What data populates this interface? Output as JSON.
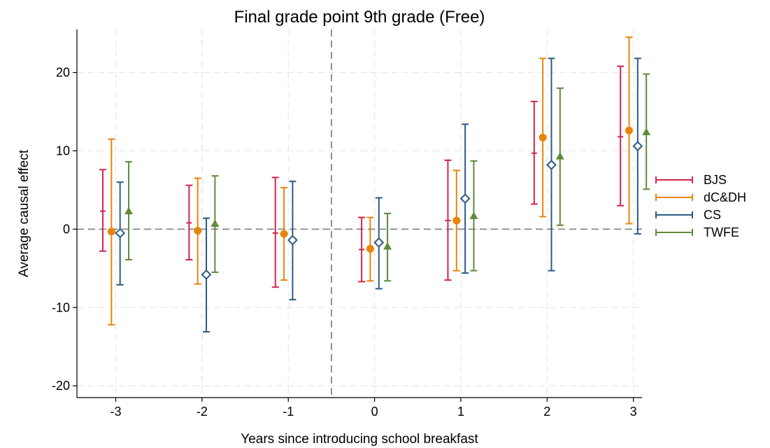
{
  "chart_data": {
    "type": "scatter",
    "title": "Final grade point 9th grade (Free)",
    "xlabel": "Years since introducing school breakfast",
    "ylabel": "Average causal effect",
    "xlim": [
      -3.45,
      3.1
    ],
    "ylim": [
      -21.5,
      25.5
    ],
    "x_ticks": [
      -3,
      -2,
      -1,
      0,
      1,
      2,
      3
    ],
    "x_tick_labels": [
      "-3",
      "-2",
      "-1",
      "0",
      "1",
      "2",
      "3"
    ],
    "y_ticks": [
      -20,
      -10,
      0,
      10,
      20
    ],
    "y_tick_labels": [
      "-20",
      "-10",
      "0",
      "10",
      "20"
    ],
    "grid": true,
    "reference_lines": {
      "y": 0,
      "x": -0.5
    },
    "legend_position": "right",
    "series": [
      {
        "name": "BJS",
        "color": "#d6234f",
        "marker": "tick",
        "points": [
          {
            "x": -3.15,
            "y": 2.3,
            "lo": -2.8,
            "hi": 7.6
          },
          {
            "x": -2.15,
            "y": 0.8,
            "lo": -3.9,
            "hi": 5.6
          },
          {
            "x": -1.15,
            "y": -0.5,
            "lo": -7.4,
            "hi": 6.6
          },
          {
            "x": -0.15,
            "y": -2.6,
            "lo": -6.7,
            "hi": 1.5
          },
          {
            "x": 0.85,
            "y": 1.1,
            "lo": -6.5,
            "hi": 8.8
          },
          {
            "x": 1.85,
            "y": 9.7,
            "lo": 3.2,
            "hi": 16.3
          },
          {
            "x": 2.85,
            "y": 11.8,
            "lo": 3.0,
            "hi": 20.8
          }
        ]
      },
      {
        "name": "dC&DH",
        "color": "#e8850c",
        "marker": "circle",
        "points": [
          {
            "x": -3.05,
            "y": -0.3,
            "lo": -12.2,
            "hi": 11.5
          },
          {
            "x": -2.05,
            "y": -0.2,
            "lo": -7.0,
            "hi": 6.5
          },
          {
            "x": -1.05,
            "y": -0.6,
            "lo": -6.5,
            "hi": 5.3
          },
          {
            "x": -0.05,
            "y": -2.5,
            "lo": -6.6,
            "hi": 1.5
          },
          {
            "x": 0.95,
            "y": 1.1,
            "lo": -5.3,
            "hi": 7.5
          },
          {
            "x": 1.95,
            "y": 11.7,
            "lo": 1.6,
            "hi": 21.8
          },
          {
            "x": 2.95,
            "y": 12.6,
            "lo": 0.7,
            "hi": 24.5
          }
        ]
      },
      {
        "name": "CS",
        "color": "#2b5b84",
        "marker": "diamond",
        "points": [
          {
            "x": -2.95,
            "y": -0.5,
            "lo": -7.1,
            "hi": 6.0
          },
          {
            "x": -1.95,
            "y": -5.8,
            "lo": -13.1,
            "hi": 1.4
          },
          {
            "x": -0.95,
            "y": -1.4,
            "lo": -9.0,
            "hi": 6.1
          },
          {
            "x": 0.05,
            "y": -1.7,
            "lo": -7.6,
            "hi": 4.0
          },
          {
            "x": 1.05,
            "y": 3.9,
            "lo": -5.6,
            "hi": 13.4
          },
          {
            "x": 2.05,
            "y": 8.2,
            "lo": -5.3,
            "hi": 21.8
          },
          {
            "x": 3.05,
            "y": 10.6,
            "lo": -0.6,
            "hi": 21.8
          }
        ]
      },
      {
        "name": "TWFE",
        "color": "#5f8a3a",
        "marker": "triangle",
        "points": [
          {
            "x": -2.85,
            "y": 2.3,
            "lo": -3.9,
            "hi": 8.6
          },
          {
            "x": -1.85,
            "y": 0.7,
            "lo": -5.5,
            "hi": 6.8
          },
          {
            "x": 0.15,
            "y": -2.2,
            "lo": -6.6,
            "hi": 2.0
          },
          {
            "x": 1.15,
            "y": 1.7,
            "lo": -5.3,
            "hi": 8.7
          },
          {
            "x": 2.15,
            "y": 9.3,
            "lo": 0.5,
            "hi": 18.0
          },
          {
            "x": 3.15,
            "y": 12.4,
            "lo": 5.1,
            "hi": 19.8
          }
        ]
      }
    ]
  }
}
